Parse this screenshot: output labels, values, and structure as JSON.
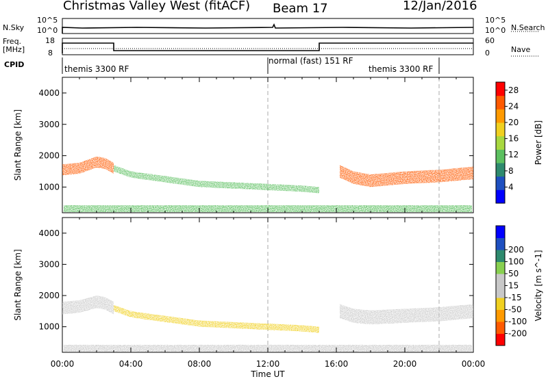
{
  "header": {
    "title": "Christmas Valley West (fitACF)",
    "beam": "Beam 17",
    "date": "12/Jan/2016"
  },
  "top_panels": {
    "nsky_label": "N.Sky",
    "nsky_ticks": [
      "10^5",
      "10^0"
    ],
    "nsky_right_ticks": [
      "10^5",
      "10^0"
    ],
    "nsearch_label": "N.Search",
    "freq_label_1": "Freq.",
    "freq_label_2": "[MHz]",
    "freq_ticks": [
      "18",
      "8"
    ],
    "nave_ticks": [
      "60",
      "0"
    ],
    "nave_label": "Nave",
    "cpid_label": "CPID",
    "cpid_segments": [
      {
        "label": "themis 3300 RF",
        "start_hour": 0,
        "end_hour": 12
      },
      {
        "label": "normal (fast) 151 RF",
        "start_hour": 12,
        "end_hour": 22
      },
      {
        "label": "themis 3300 RF",
        "start_hour": 12,
        "end_hour": 22
      }
    ]
  },
  "colors": {
    "scatter_gray": "#c8c8c8",
    "power_scale": [
      "#0000ff",
      "#1e4fc0",
      "#2e8a6e",
      "#5cc060",
      "#a8d840",
      "#f0d020",
      "#ff9a00",
      "#ff5a00",
      "#ff0000"
    ],
    "velocity_scale": [
      "#ff0000",
      "#ff5a00",
      "#ff9a00",
      "#f0d020",
      "#c8c8c8",
      "#c8c8c8",
      "#88d050",
      "#2e8a6e",
      "#1e4fc0",
      "#0000ff"
    ]
  },
  "chart_data": [
    {
      "type": "heatmap",
      "name": "Power",
      "xlabel": "",
      "ylabel": "Slant Range [km]",
      "xlim": [
        0,
        24
      ],
      "ylim": [
        180,
        4500
      ],
      "yticks": [
        1000,
        2000,
        3000,
        4000
      ],
      "colorbar_label": "Power [dB]",
      "colorbar_ticks": [
        4,
        8,
        12,
        16,
        20,
        24,
        28
      ],
      "colorbar_range": [
        0,
        30
      ],
      "bands": [
        {
          "x": [
            0,
            1,
            2,
            2.5,
            3
          ],
          "y_center": [
            1550,
            1600,
            1800,
            1750,
            1600
          ],
          "width": 350,
          "value": 26
        },
        {
          "x": [
            3,
            4,
            6,
            8,
            10,
            12,
            14,
            15
          ],
          "y_center": [
            1600,
            1400,
            1250,
            1100,
            1050,
            1000,
            950,
            900
          ],
          "width": 200,
          "value": 12
        },
        {
          "x": [
            16.2,
            17,
            18,
            20,
            22,
            24
          ],
          "y_center": [
            1500,
            1300,
            1200,
            1300,
            1350,
            1450
          ],
          "width": 400,
          "value": 26
        }
      ]
    },
    {
      "type": "heatmap",
      "name": "Velocity",
      "xlabel": "Time UT",
      "ylabel": "Slant Range [km]",
      "xlim": [
        0,
        24
      ],
      "ylim": [
        180,
        4500
      ],
      "yticks": [
        1000,
        2000,
        3000,
        4000
      ],
      "xticks": [
        "00:00",
        "04:00",
        "08:00",
        "12:00",
        "16:00",
        "20:00",
        "00:00"
      ],
      "colorbar_label": "Velocity [m s^-1]",
      "colorbar_ticks": [
        -200,
        -100,
        -50,
        -15,
        15,
        50,
        100,
        200
      ],
      "colorbar_range": [
        -250,
        250
      ],
      "bands": [
        {
          "x": [
            0,
            1,
            2,
            2.5,
            3
          ],
          "y_center": [
            1600,
            1650,
            1800,
            1750,
            1600
          ],
          "width": 400,
          "value": 0
        },
        {
          "x": [
            3,
            4,
            6,
            8,
            10,
            12,
            14,
            15
          ],
          "y_center": [
            1600,
            1400,
            1250,
            1100,
            1050,
            1000,
            950,
            900
          ],
          "width": 200,
          "value": -60
        },
        {
          "x": [
            16.2,
            17,
            18,
            20,
            22,
            24
          ],
          "y_center": [
            1500,
            1350,
            1300,
            1350,
            1400,
            1500
          ],
          "width": 450,
          "value": 0
        }
      ]
    }
  ]
}
